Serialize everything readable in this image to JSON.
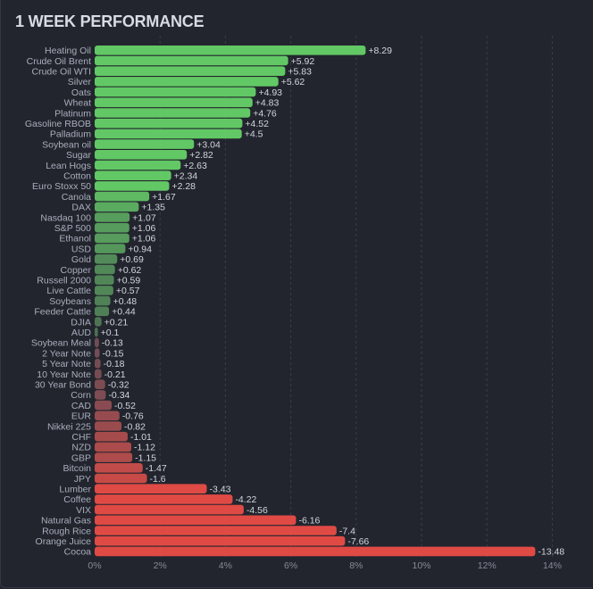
{
  "title": "1 WEEK PERFORMANCE",
  "colors": {
    "background": "#22252e",
    "positive": "#62c865",
    "negative": "#e04a44",
    "positive_muted": "#4a6b52",
    "negative_muted": "#6a4c55",
    "grid": "#3a3e4a"
  },
  "chart_data": {
    "type": "bar",
    "orientation": "horizontal",
    "title": "1 WEEK PERFORMANCE",
    "xlabel": "",
    "ylabel": "",
    "xlim": [
      0,
      14
    ],
    "value_axis": "absolute percent change",
    "grid": true,
    "legend": "none",
    "x_ticks": [
      "0%",
      "2%",
      "4%",
      "6%",
      "8%",
      "10%",
      "12%",
      "14%"
    ],
    "categories": [
      "Heating Oil",
      "Crude Oil Brent",
      "Crude Oil WTI",
      "Silver",
      "Oats",
      "Wheat",
      "Platinum",
      "Gasoline RBOB",
      "Palladium",
      "Soybean oil",
      "Sugar",
      "Lean Hogs",
      "Cotton",
      "Euro Stoxx 50",
      "Canola",
      "DAX",
      "Nasdaq 100",
      "S&P 500",
      "Ethanol",
      "USD",
      "Gold",
      "Copper",
      "Russell 2000",
      "Live Cattle",
      "Soybeans",
      "Feeder Cattle",
      "DJIA",
      "AUD",
      "Soybean Meal",
      "2 Year Note",
      "5 Year Note",
      "10 Year Note",
      "30 Year Bond",
      "Corn",
      "CAD",
      "EUR",
      "Nikkei 225",
      "CHF",
      "NZD",
      "GBP",
      "Bitcoin",
      "JPY",
      "Lumber",
      "Coffee",
      "VIX",
      "Natural Gas",
      "Rough Rice",
      "Orange Juice",
      "Cocoa"
    ],
    "values": [
      8.29,
      5.92,
      5.83,
      5.62,
      4.93,
      4.83,
      4.76,
      4.52,
      4.5,
      3.04,
      2.82,
      2.63,
      2.34,
      2.28,
      1.67,
      1.35,
      1.07,
      1.06,
      1.06,
      0.94,
      0.69,
      0.62,
      0.59,
      0.57,
      0.48,
      0.44,
      0.21,
      0.1,
      -0.13,
      -0.15,
      -0.18,
      -0.21,
      -0.32,
      -0.34,
      -0.52,
      -0.76,
      -0.82,
      -1.01,
      -1.12,
      -1.15,
      -1.47,
      -1.6,
      -3.43,
      -4.22,
      -4.56,
      -6.16,
      -7.4,
      -7.66,
      -13.48
    ],
    "value_labels": [
      "+8.29",
      "+5.92",
      "+5.83",
      "+5.62",
      "+4.93",
      "+4.83",
      "+4.76",
      "+4.52",
      "+4.5",
      "+3.04",
      "+2.82",
      "+2.63",
      "+2.34",
      "+2.28",
      "+1.67",
      "+1.35",
      "+1.07",
      "+1.06",
      "+1.06",
      "+0.94",
      "+0.69",
      "+0.62",
      "+0.59",
      "+0.57",
      "+0.48",
      "+0.44",
      "+0.21",
      "+0.1",
      "-0.13",
      "-0.15",
      "-0.18",
      "-0.21",
      "-0.32",
      "-0.34",
      "-0.52",
      "-0.76",
      "-0.82",
      "-1.01",
      "-1.12",
      "-1.15",
      "-1.47",
      "-1.6",
      "-3.43",
      "-4.22",
      "-4.56",
      "-6.16",
      "-7.4",
      "-7.66",
      "-13.48"
    ]
  }
}
